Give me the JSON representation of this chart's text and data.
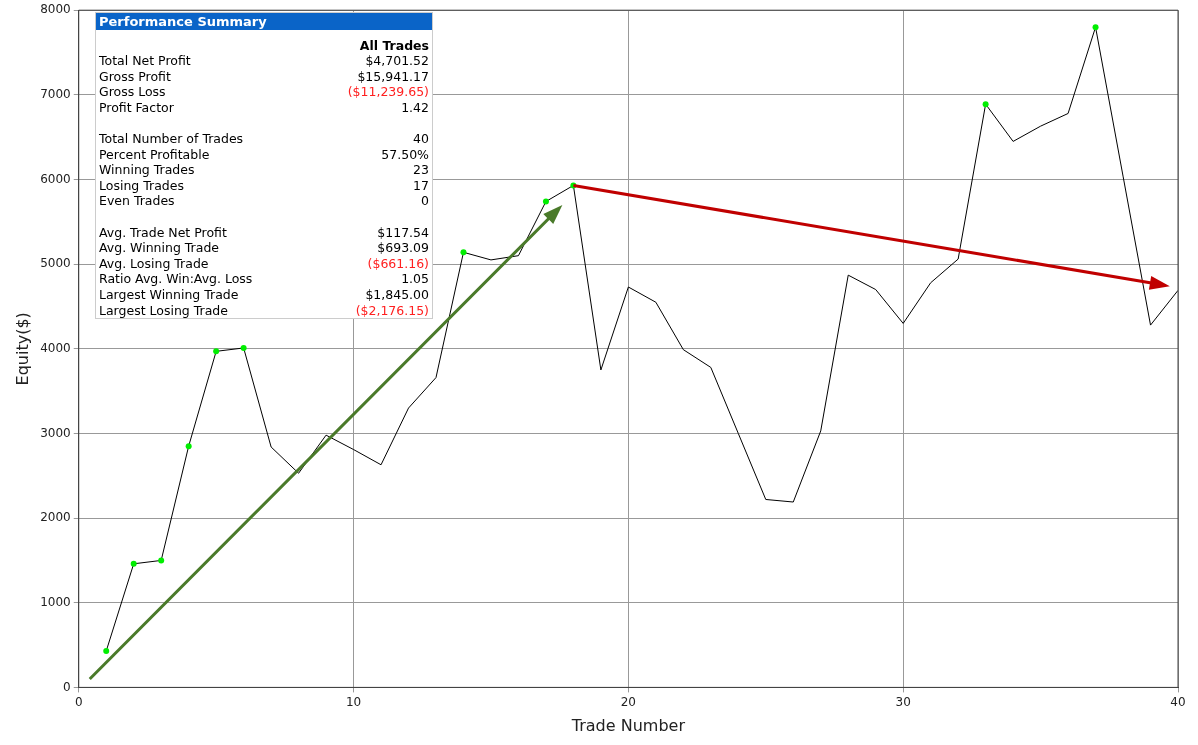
{
  "chart_data": {
    "type": "line",
    "xlabel": "Trade Number",
    "ylabel": "Equity($)",
    "xlim": [
      0,
      40
    ],
    "xticks": [
      0,
      10,
      20,
      30,
      40
    ],
    "ylim": [
      0,
      8000
    ],
    "yticks": [
      0,
      1000,
      2000,
      3000,
      4000,
      5000,
      6000,
      7000,
      8000
    ],
    "grid": true,
    "legend": false,
    "series": [
      {
        "color": "#000000",
        "marker": "none",
        "x": [
          1,
          2,
          3,
          4,
          5,
          6,
          7,
          8,
          9,
          10,
          11,
          12,
          13,
          14,
          15,
          16,
          17,
          18,
          19,
          20,
          21,
          22,
          23,
          24,
          25,
          26,
          27,
          28,
          29,
          30,
          31,
          32,
          33,
          34,
          35,
          36,
          37,
          38,
          39,
          40
        ],
        "values": [
          430,
          1460,
          1500,
          2850,
          3970,
          4010,
          2840,
          2530,
          2980,
          2810,
          2630,
          3300,
          3660,
          5140,
          5050,
          5100,
          5740,
          5930,
          3750,
          4730,
          4550,
          3990,
          3780,
          3000,
          2220,
          2190,
          3030,
          4870,
          4700,
          4300,
          4780,
          5060,
          6890,
          6450,
          6630,
          6780,
          7800,
          6040,
          4280,
          4690
        ]
      },
      {
        "type": "scatter",
        "color": "#00ee00",
        "marker": "circle",
        "x": [
          1,
          2,
          3,
          4,
          5,
          6,
          14,
          17,
          18,
          33,
          37
        ],
        "values": [
          430,
          1460,
          1500,
          2850,
          3970,
          4010,
          5140,
          5740,
          5930,
          6890,
          7800
        ]
      }
    ],
    "annotations": [
      "Performance Summary",
      "All Trades",
      "Total Net Profit",
      "$4,701.52",
      "Gross Profit",
      "$15,941.17",
      "Gross Loss",
      "($11,239.65)",
      "Profit Factor",
      "1.42",
      "Total Number of Trades",
      "40",
      "Percent Profitable",
      "57.50%",
      "Winning Trades",
      "23",
      "Losing Trades",
      "17",
      "Even Trades",
      "0",
      "Avg. Trade Net Profit",
      "$117.54",
      "Avg. Winning Trade",
      "$693.09",
      "Avg. Losing Trade",
      "($661.16)",
      "Ratio Avg. Win:Avg. Loss",
      "1.05",
      "Largest Winning Trade",
      "$1,845.00",
      "Largest Losing Trade",
      "($2,176.15)"
    ]
  }
}
